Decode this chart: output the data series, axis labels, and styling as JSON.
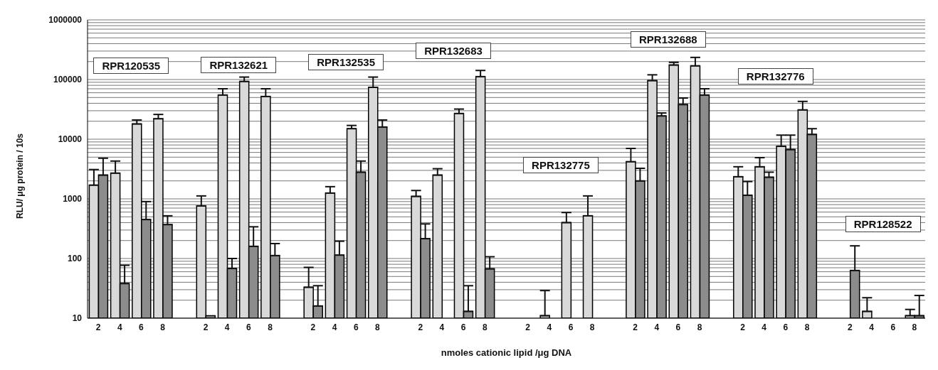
{
  "chart_data": {
    "type": "bar",
    "xlabel": "nmoles cationic lipid /μg DNA",
    "ylabel": "RLU/ μg protein / 10s",
    "categories": [
      "2",
      "4",
      "6",
      "8",
      null,
      "2",
      "4",
      "6",
      "8",
      null,
      "2",
      "4",
      "6",
      "8",
      null,
      "2",
      "4",
      "6",
      "8",
      null,
      "2",
      "4",
      "6",
      "8",
      null,
      "2",
      "4",
      "6",
      "8",
      null,
      "2",
      "4",
      "6",
      "8",
      null,
      "2",
      "4",
      "6",
      "8"
    ],
    "series": [
      {
        "color": "#d9d9d9",
        "values": [
          1700,
          2700,
          18000,
          22000,
          null,
          760,
          55000,
          93000,
          52000,
          null,
          33,
          1250,
          15000,
          74000,
          null,
          1100,
          2500,
          27000,
          112000,
          null,
          null,
          11,
          400,
          520,
          null,
          4200,
          96000,
          175000,
          170000,
          null,
          2350,
          3450,
          7600,
          31000,
          null,
          null,
          13,
          null,
          11
        ],
        "errors": [
          [
            1700,
            3100
          ],
          [
            2700,
            4300
          ],
          [
            18000,
            21000
          ],
          [
            22000,
            26000
          ],
          null,
          [
            760,
            1120
          ],
          [
            55000,
            70000
          ],
          [
            93000,
            110000
          ],
          [
            52000,
            70000
          ],
          null,
          [
            33,
            71
          ],
          [
            1250,
            1600
          ],
          [
            15000,
            17000
          ],
          [
            74000,
            110000
          ],
          null,
          [
            1100,
            1380
          ],
          [
            2500,
            3200
          ],
          [
            27000,
            32000
          ],
          [
            112000,
            142000
          ],
          null,
          null,
          [
            11,
            29
          ],
          [
            400,
            590
          ],
          [
            520,
            1120
          ],
          null,
          [
            4200,
            7000
          ],
          [
            96000,
            120000
          ],
          [
            175000,
            194000
          ],
          [
            170000,
            235000
          ],
          null,
          [
            2350,
            3450
          ],
          [
            3450,
            4900
          ],
          [
            7600,
            11700
          ],
          [
            31000,
            43000
          ],
          null,
          null,
          [
            13,
            22
          ],
          null,
          [
            11,
            14
          ]
        ]
      },
      {
        "color": "#8c8c8c",
        "values": [
          2500,
          38,
          450,
          370,
          null,
          11,
          68,
          160,
          112,
          null,
          16,
          114,
          2800,
          16000,
          null,
          215,
          null,
          13,
          67,
          null,
          null,
          null,
          null,
          null,
          null,
          2000,
          24500,
          38000,
          55000,
          null,
          1150,
          2300,
          6700,
          12000,
          null,
          63,
          null,
          null,
          11
        ],
        "errors": [
          [
            2500,
            4800
          ],
          [
            38,
            77
          ],
          [
            450,
            900
          ],
          [
            370,
            520
          ],
          null,
          null,
          [
            68,
            100
          ],
          [
            160,
            340
          ],
          [
            112,
            178
          ],
          null,
          [
            16,
            35
          ],
          [
            114,
            195
          ],
          [
            2800,
            4300
          ],
          [
            16000,
            21000
          ],
          null,
          [
            215,
            380
          ],
          null,
          [
            13,
            35
          ],
          [
            67,
            107
          ],
          null,
          null,
          null,
          null,
          null,
          null,
          [
            2000,
            3250
          ],
          [
            24500,
            27500
          ],
          [
            38000,
            49000
          ],
          [
            55000,
            70000
          ],
          null,
          [
            1150,
            1950
          ],
          [
            2300,
            2800
          ],
          [
            6700,
            11700
          ],
          [
            12000,
            15000
          ],
          null,
          [
            63,
            163
          ],
          null,
          null,
          [
            11,
            24
          ]
        ]
      }
    ],
    "log": "y",
    "ylim": [
      10,
      1000000
    ],
    "yticks": [
      10,
      {
        "value": 20,
        "label": null
      },
      {
        "value": 30,
        "label": null
      },
      {
        "value": 40,
        "label": null
      },
      {
        "value": 50,
        "label": null
      },
      {
        "value": 60,
        "label": null
      },
      {
        "value": 70,
        "label": null
      },
      {
        "value": 80,
        "label": null
      },
      {
        "value": 90,
        "label": null
      },
      100,
      {
        "value": 200,
        "label": null
      },
      {
        "value": 300,
        "label": null
      },
      {
        "value": 400,
        "label": null
      },
      {
        "value": 500,
        "label": null
      },
      {
        "value": 600,
        "label": null
      },
      {
        "value": 700,
        "label": null
      },
      {
        "value": 800,
        "label": null
      },
      {
        "value": 900,
        "label": null
      },
      1000,
      {
        "value": 2000,
        "label": null
      },
      {
        "value": 3000,
        "label": null
      },
      {
        "value": 4000,
        "label": null
      },
      {
        "value": 5000,
        "label": null
      },
      {
        "value": 6000,
        "label": null
      },
      {
        "value": 7000,
        "label": null
      },
      {
        "value": 8000,
        "label": null
      },
      {
        "value": 9000,
        "label": null
      },
      10000,
      {
        "value": 20000,
        "label": null
      },
      {
        "value": 30000,
        "label": null
      },
      {
        "value": 40000,
        "label": null
      },
      {
        "value": 50000,
        "label": null
      },
      {
        "value": 60000,
        "label": null
      },
      {
        "value": 70000,
        "label": null
      },
      {
        "value": 80000,
        "label": null
      },
      {
        "value": 90000,
        "label": null
      },
      100000,
      {
        "value": 200000,
        "label": null
      },
      {
        "value": 300000,
        "label": null
      },
      {
        "value": 400000,
        "label": null
      },
      {
        "value": 500000,
        "label": null
      },
      {
        "value": 600000,
        "label": null
      },
      {
        "value": 700000,
        "label": null
      },
      {
        "value": 800000,
        "label": null
      },
      {
        "value": 900000,
        "label": null
      },
      1000000
    ],
    "grid": "y",
    "annotations": [
      "RPR120535",
      "RPR132621",
      "RPR132535",
      "RPR132683",
      "RPR132775",
      "RPR132688",
      "RPR132776",
      "RPR128522"
    ]
  }
}
